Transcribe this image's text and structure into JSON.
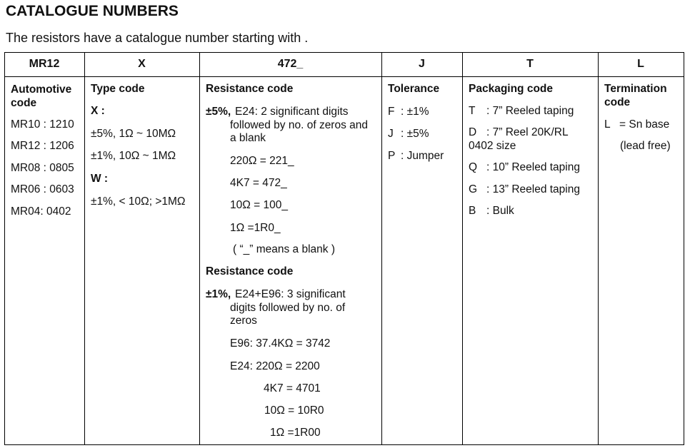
{
  "title": "CATALOGUE NUMBERS",
  "subtitle": "The resistors have a catalogue number starting with .",
  "headers": [
    "MR12",
    "X",
    "472_",
    "J",
    "T",
    "L"
  ],
  "automotive": {
    "heading": "Automotive code",
    "items": [
      "MR10 : 1210",
      "MR12 : 1206",
      "MR08 : 0805",
      "MR06 : 0603",
      "MR04: 0402"
    ]
  },
  "type": {
    "heading": "Type code",
    "x_label": "X :",
    "x_items": [
      "±5%, 1Ω ~ 10MΩ",
      "±1%, 10Ω ~ 1MΩ"
    ],
    "w_label": "W :",
    "w_items": [
      "±1%, < 10Ω; >1MΩ"
    ]
  },
  "resistance": {
    "heading1": "Resistance code",
    "tol5": "±5%,",
    "desc5": [
      "E24: 2 significant digits",
      "followed by no. of zeros and",
      "a blank"
    ],
    "ex5": [
      "220Ω = 221_",
      "4K7 = 472_",
      "10Ω = 100_",
      "1Ω =1R0_",
      "( “_” means a blank )"
    ],
    "heading2": "Resistance code",
    "tol1": "±1%,",
    "desc1": [
      "E24+E96: 3 significant",
      "digits  followed by no. of",
      "zeros"
    ],
    "ex1": [
      "E96: 37.4KΩ = 3742",
      "E24: 220Ω = 2200",
      "4K7 = 4701",
      "10Ω = 10R0",
      "1Ω =1R00"
    ]
  },
  "tolerance": {
    "heading": "Tolerance",
    "items": [
      {
        "code": "F",
        "desc": ": ±1%"
      },
      {
        "code": "J",
        "desc": ": ±5%"
      },
      {
        "code": "P",
        "desc": ": Jumper"
      }
    ]
  },
  "packaging": {
    "heading": "Packaging code",
    "items": [
      {
        "code": "T",
        "desc": ": 7” Reeled taping"
      },
      {
        "code": "D",
        "desc": ": 7” Reel 20K/RL",
        "extra": "0402 size"
      },
      {
        "code": "Q",
        "desc": ": 10” Reeled taping"
      },
      {
        "code": "G",
        "desc": ": 13” Reeled taping"
      },
      {
        "code": "B",
        "desc": ": Bulk"
      }
    ]
  },
  "termination": {
    "heading": [
      "Termination",
      "code"
    ],
    "code": "L",
    "desc": "= Sn base",
    "note": "(lead free)"
  }
}
